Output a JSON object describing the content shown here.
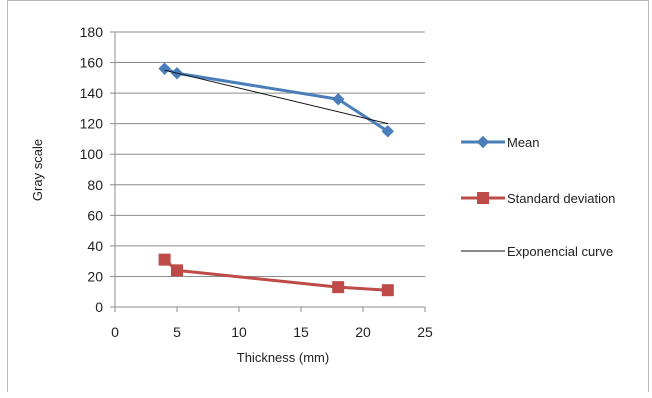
{
  "chart_data": {
    "type": "line",
    "xlabel": "Thickness (mm)",
    "ylabel": "Gray scale",
    "xlim": [
      0,
      25
    ],
    "ylim": [
      0,
      180
    ],
    "x_ticks": [
      0,
      5,
      10,
      15,
      20,
      25
    ],
    "y_ticks": [
      0,
      20,
      40,
      60,
      80,
      100,
      120,
      140,
      160,
      180
    ],
    "grid": "horizontal",
    "legend_position": "right",
    "series": [
      {
        "name": "Mean",
        "color": "#4a7ebb",
        "marker": "diamond",
        "x": [
          4,
          5,
          18,
          22
        ],
        "y": [
          156,
          153,
          136,
          115
        ]
      },
      {
        "name": "Standard deviation",
        "color": "#be4b48",
        "marker": "square",
        "x": [
          4,
          5,
          18,
          22
        ],
        "y": [
          31,
          24,
          13,
          11
        ]
      },
      {
        "name": "Exponencial curve",
        "color": "#111111",
        "marker": "none",
        "x": [
          4,
          22
        ],
        "y": [
          155,
          120
        ]
      }
    ]
  }
}
